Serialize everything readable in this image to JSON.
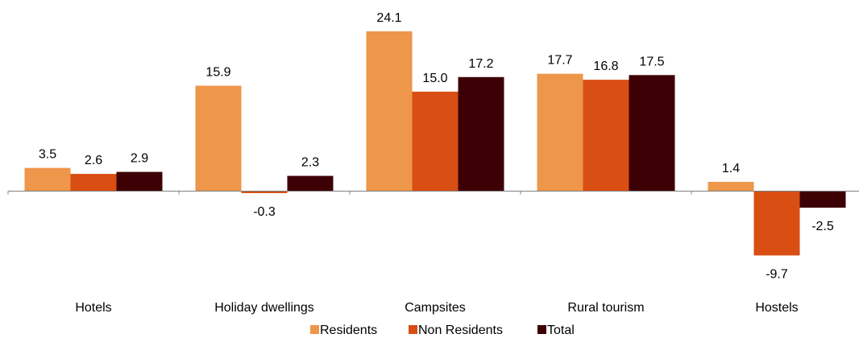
{
  "chart_data": {
    "type": "bar",
    "title": "",
    "xlabel": "",
    "ylabel": "",
    "ylim": [
      -13,
      28
    ],
    "grid": false,
    "legend_position": "bottom",
    "categories": [
      "Hotels",
      "Holiday dwellings",
      "Campsites",
      "Rural tourism",
      "Hostels"
    ],
    "series": [
      {
        "name": "Residents",
        "color": "#EE964A",
        "values": [
          3.5,
          15.9,
          24.1,
          17.7,
          1.4
        ],
        "labels": [
          "3.5",
          "15.9",
          "24.1",
          "17.7",
          "1.4"
        ]
      },
      {
        "name": "Non Residents",
        "color": "#D94E12",
        "values": [
          2.6,
          -0.3,
          15.0,
          16.8,
          -9.7
        ],
        "labels": [
          "2.6",
          "-0.3",
          "15.0",
          "16.8",
          "-9.7"
        ]
      },
      {
        "name": "Total",
        "color": "#3D0005",
        "values": [
          2.9,
          2.3,
          17.2,
          17.5,
          -2.5
        ],
        "labels": [
          "2.9",
          "2.3",
          "17.2",
          "17.5",
          "-2.5"
        ]
      }
    ]
  }
}
